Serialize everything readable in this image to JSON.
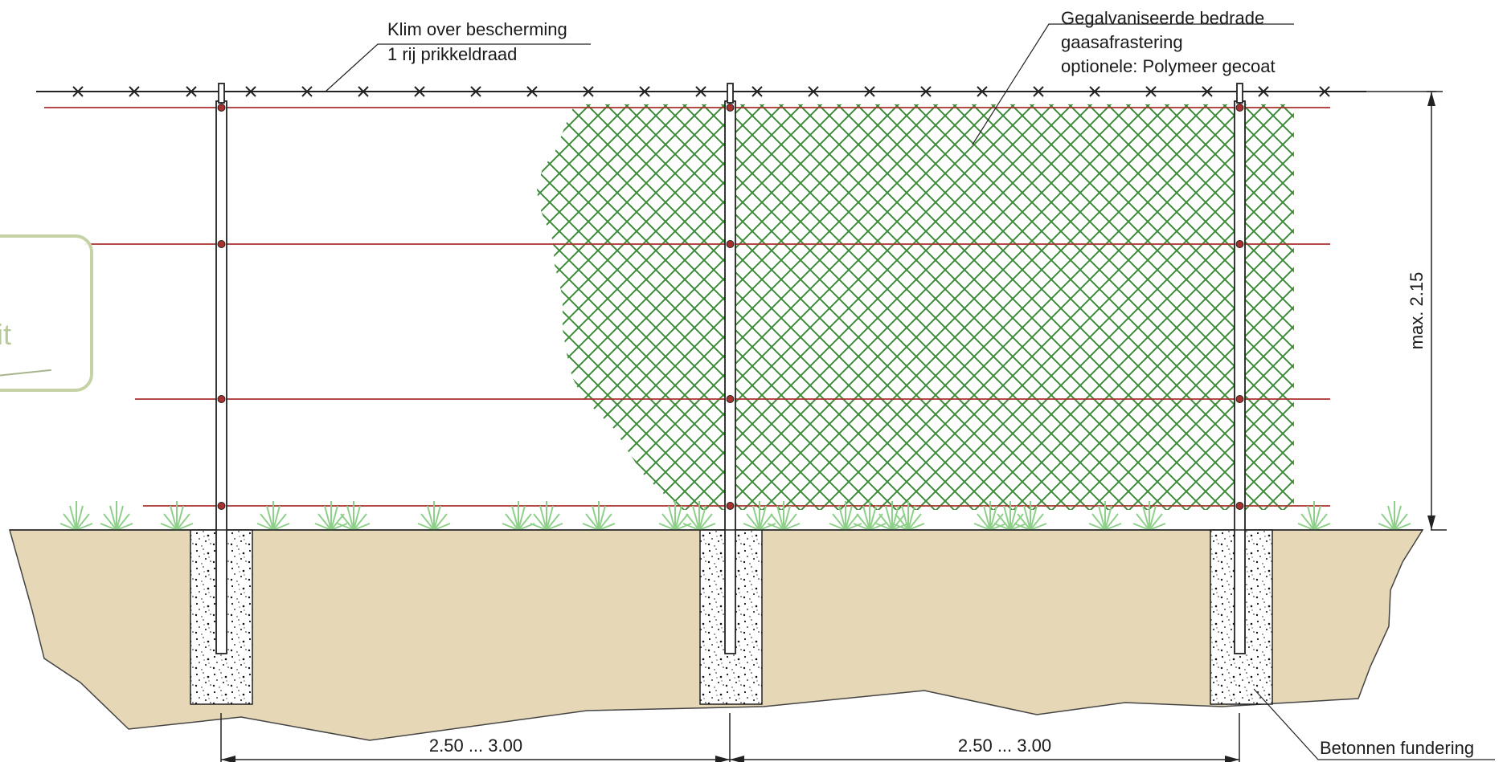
{
  "labels": {
    "top_left_line1": "Klim over bescherming",
    "top_left_line2": "1 rij prikkeldraad",
    "top_right_line1": "Gegalvaniseerde bedrade",
    "top_right_line2": "gaasafrastering",
    "top_right_line3": "optionele: Polymeer gecoat",
    "height_dimension": "max. 2.15",
    "span_dimension_left": "2.50 ... 3.00",
    "span_dimension_right": "2.50 ... 3.00",
    "foundation": "Betonnen fundering"
  },
  "overlay": {
    "partial_text": "it"
  },
  "colors": {
    "soil": "#e6d7b6",
    "mesh": "#3f8a3a",
    "tension_wire": "#a8302d",
    "grass": "#8ed08a",
    "concrete": "#ffffff",
    "line": "#222222"
  }
}
